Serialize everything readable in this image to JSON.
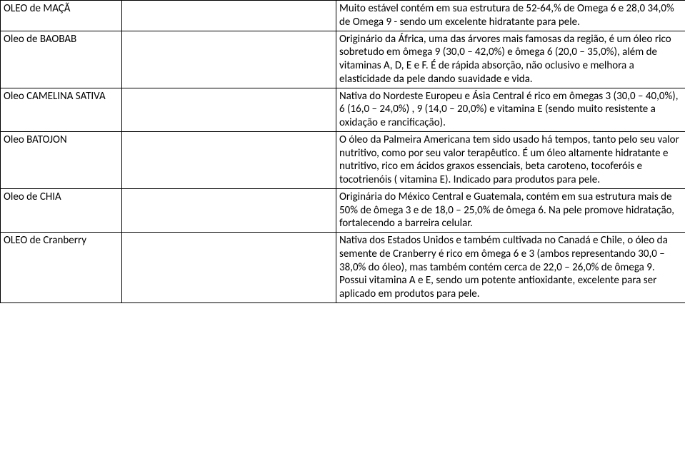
{
  "rows": [
    {
      "name": "OLEO de MAÇÃ",
      "desc": "Muito estável contém em sua estrutura de 52-64,% de Omega 6 e 28,0 34,0% de Omega 9 - sendo um excelente hidratante para pele."
    },
    {
      "name": "Oleo de BAOBAB",
      "desc": "Originário da África, uma das árvores mais famosas da região, é um óleo rico sobretudo em ômega 9 (30,0 – 42,0%) e ômega 6 (20,0 – 35,0%), além de vitaminas A, D, E e F. É de rápida absorção, não oclusivo e melhora a elasticidade da pele dando suavidade e vida."
    },
    {
      "name": "Oleo CAMELINA SATIVA",
      "desc": "Nativa do Nordeste Europeu e Ásia Central é rico em ômegas 3 (30,0 – 40,0%), 6 (16,0 – 24,0%) , 9 (14,0 – 20,0%) e vitamina E (sendo muito resistente a oxidação e rancificação)."
    },
    {
      "name": "Oleo BATOJON",
      "desc": "O óleo da Palmeira Americana tem sido usado há tempos, tanto pelo seu valor nutritivo, como por seu valor terapêutico. É um óleo altamente hidratante e nutritivo, rico em ácidos graxos essenciais, beta caroteno, tocoferóis e tocotrienóis ( vitamina E). Indicado para produtos para pele."
    },
    {
      "name": "Oleo de CHIA",
      "desc": "Originária do México Central e Guatemala, contém em sua estrutura mais de 50% de ômega 3 e de 18,0 – 25,0% de ômega 6. Na pele promove hidratação, fortalecendo a barreira celular."
    },
    {
      "name": "OLEO de Cranberry",
      "desc": "Nativa dos Estados Unidos e também cultivada no Canadá e Chile, o óleo da semente de Cranberry é rico em ômega 6 e 3 (ambos representando 30,0 – 38,0% do óleo), mas também contém cerca de 22,0 – 26,0% de ômega 9. Possui vitamina A e E, sendo um potente antioxidante, excelente para ser aplicado em produtos para pele."
    }
  ]
}
